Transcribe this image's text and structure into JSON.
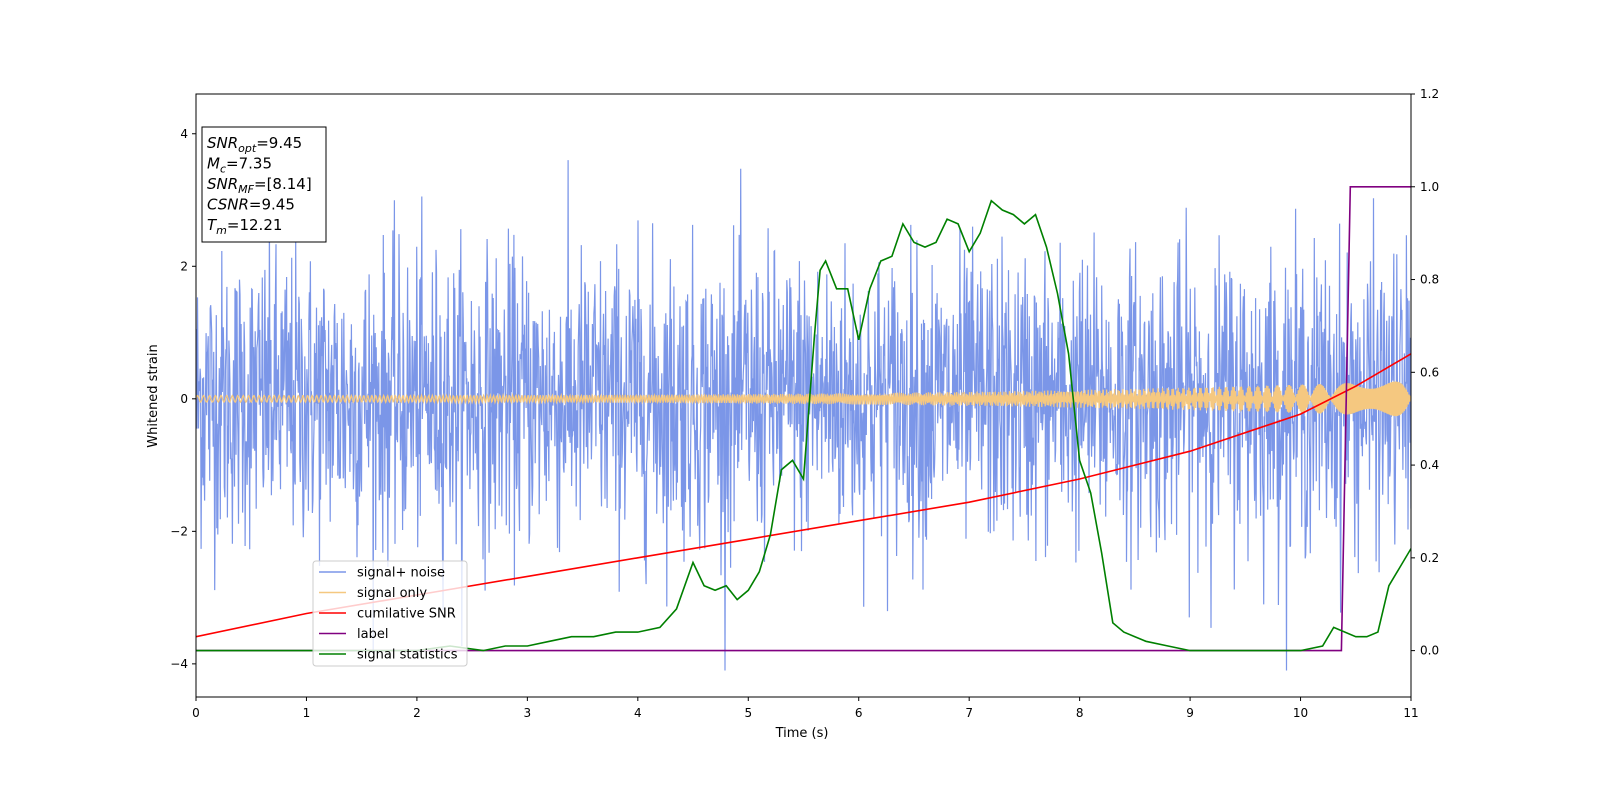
{
  "chart_data": {
    "type": "line",
    "xlabel": "Time (s)",
    "ylabel": "Whitened strain",
    "xlim": [
      0,
      11
    ],
    "ylim": [
      -4.5,
      4.6
    ],
    "ylim_right": [
      -0.1,
      1.2
    ],
    "x_ticks": [
      "0",
      "1",
      "2",
      "3",
      "4",
      "5",
      "6",
      "7",
      "8",
      "9",
      "10",
      "11"
    ],
    "y_ticks": [
      "−4",
      "−2",
      "0",
      "2",
      "4"
    ],
    "y_ticks_right": [
      "0.0",
      "0.2",
      "0.4",
      "0.6",
      "0.8",
      "1.0",
      "1.2"
    ],
    "grid": false,
    "legend_position": "lower-left",
    "annotation": {
      "lines": [
        {
          "base": "SNR",
          "sub": "opt",
          "value": "=9.45"
        },
        {
          "base": "M",
          "sub": "c",
          "value": "=7.35"
        },
        {
          "base": "SNR",
          "sub": "MF",
          "value": "=[8.14]"
        },
        {
          "base": "CSNR",
          "sub": "",
          "value": "=9.45"
        },
        {
          "base": "T",
          "sub": "m",
          "value": "=12.21"
        }
      ]
    },
    "series": [
      {
        "name": "signal+ noise",
        "color": "#7b96e8",
        "axis": "left",
        "description_of_values": "noise envelope, approx ±2 typical, peaks ±4",
        "typical_amplitude": 2.0,
        "peak_amplitude": 4.1
      },
      {
        "name": "signal only",
        "color": "#f5c880",
        "axis": "left",
        "amplitude_start": 0.05,
        "amplitude_end": 0.27
      },
      {
        "name": "cumilative SNR",
        "color": "#ff0000",
        "axis": "right",
        "x": [
          0,
          1,
          2,
          3,
          4,
          5,
          6,
          7,
          8,
          9,
          10,
          10.5,
          11
        ],
        "y": [
          0.03,
          0.08,
          0.12,
          0.16,
          0.2,
          0.24,
          0.28,
          0.32,
          0.37,
          0.43,
          0.51,
          0.57,
          0.64
        ]
      },
      {
        "name": "label",
        "color": "#800080",
        "axis": "right",
        "x": [
          0,
          10.37,
          10.45,
          11
        ],
        "y": [
          0.0,
          0.0,
          1.0,
          1.0
        ]
      },
      {
        "name": "signal statistics",
        "color": "#008000",
        "axis": "right",
        "x": [
          0,
          0.5,
          1.0,
          1.5,
          2.0,
          2.3,
          2.6,
          2.8,
          3.0,
          3.2,
          3.4,
          3.6,
          3.8,
          4.0,
          4.2,
          4.35,
          4.5,
          4.6,
          4.7,
          4.8,
          4.9,
          5.0,
          5.1,
          5.2,
          5.3,
          5.4,
          5.5,
          5.6,
          5.65,
          5.7,
          5.8,
          5.9,
          6.0,
          6.1,
          6.2,
          6.3,
          6.4,
          6.5,
          6.6,
          6.7,
          6.8,
          6.9,
          7.0,
          7.1,
          7.2,
          7.3,
          7.4,
          7.5,
          7.6,
          7.7,
          7.8,
          7.9,
          8.0,
          8.1,
          8.2,
          8.3,
          8.4,
          8.5,
          8.6,
          8.8,
          9.0,
          9.5,
          10.0,
          10.2,
          10.3,
          10.5,
          10.6,
          10.7,
          10.8,
          10.9,
          11.0
        ],
        "y": [
          0.0,
          0.0,
          0.0,
          0.0,
          0.0,
          0.01,
          0.0,
          0.01,
          0.01,
          0.02,
          0.03,
          0.03,
          0.04,
          0.04,
          0.05,
          0.09,
          0.19,
          0.14,
          0.13,
          0.14,
          0.11,
          0.13,
          0.17,
          0.25,
          0.39,
          0.41,
          0.37,
          0.68,
          0.82,
          0.84,
          0.78,
          0.78,
          0.67,
          0.78,
          0.84,
          0.85,
          0.92,
          0.88,
          0.87,
          0.88,
          0.93,
          0.92,
          0.86,
          0.9,
          0.97,
          0.95,
          0.94,
          0.92,
          0.94,
          0.87,
          0.77,
          0.64,
          0.41,
          0.34,
          0.21,
          0.06,
          0.04,
          0.03,
          0.02,
          0.01,
          0.0,
          0.0,
          0.0,
          0.01,
          0.05,
          0.03,
          0.03,
          0.04,
          0.14,
          0.18,
          0.22
        ]
      }
    ]
  }
}
